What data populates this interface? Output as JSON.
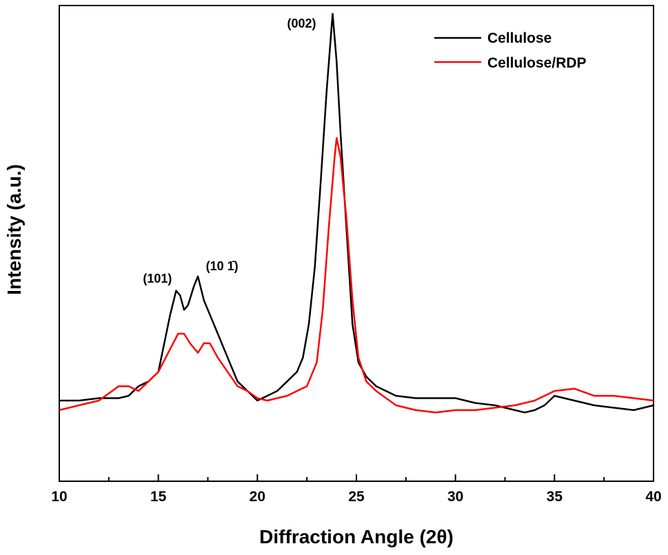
{
  "chart_data": {
    "type": "line",
    "title": "",
    "xlabel": "Diffraction Angle (2θ)",
    "ylabel": "Intensity (a.u.)",
    "xlim": [
      10,
      40
    ],
    "ylim": [
      0,
      100
    ],
    "xticks": [
      10,
      15,
      20,
      25,
      30,
      35,
      40
    ],
    "grid": false,
    "legend_position": "top-right",
    "annotations": [
      {
        "text": "(002)",
        "x": 23.8
      },
      {
        "text": "(101)",
        "x": 16.0
      },
      {
        "text": "(10 1̄)",
        "x": 17.0
      }
    ],
    "series": [
      {
        "name": "Cellulose",
        "color": "#000000",
        "x": [
          10,
          11,
          12,
          13,
          13.5,
          14,
          14.5,
          15,
          15.3,
          15.6,
          15.9,
          16.1,
          16.3,
          16.5,
          16.8,
          17.0,
          17.3,
          17.6,
          18.0,
          18.5,
          19.0,
          19.5,
          20.0,
          20.5,
          21.0,
          21.5,
          22.0,
          22.3,
          22.6,
          22.9,
          23.2,
          23.5,
          23.8,
          24.0,
          24.2,
          24.5,
          24.8,
          25.1,
          25.5,
          26.0,
          27.0,
          28.0,
          29.0,
          30.0,
          31.0,
          32.0,
          33.0,
          33.5,
          34.0,
          34.5,
          35.0,
          36.0,
          37.0,
          38.0,
          39.0,
          40.0
        ],
        "y": [
          19,
          19,
          19.5,
          19.5,
          20,
          22,
          23,
          25,
          31,
          37,
          42,
          41,
          38,
          39,
          43,
          45,
          40,
          37,
          33,
          28,
          23,
          21,
          19,
          20,
          21,
          23,
          25,
          28,
          35,
          47,
          65,
          84,
          100,
          90,
          75,
          55,
          35,
          27,
          24,
          22,
          20,
          19.5,
          19.5,
          19.5,
          18.5,
          18,
          17,
          16.5,
          17,
          18,
          20,
          19,
          18,
          17.5,
          17,
          18
        ]
      },
      {
        "name": "Cellulose/RDP",
        "color": "#ff0000",
        "x": [
          10,
          11,
          12,
          12.5,
          13,
          13.5,
          14,
          14.5,
          15,
          15.5,
          16.0,
          16.3,
          16.6,
          17.0,
          17.3,
          17.6,
          18.0,
          18.5,
          19.0,
          19.5,
          20.0,
          20.5,
          21.0,
          21.5,
          22.0,
          22.5,
          23.0,
          23.3,
          23.6,
          23.9,
          24.0,
          24.2,
          24.5,
          24.8,
          25.1,
          25.5,
          26.0,
          27.0,
          28.0,
          29.0,
          30.0,
          31.0,
          32.0,
          33.0,
          34.0,
          35.0,
          36.0,
          37.0,
          38.0,
          39.0,
          40.0
        ],
        "y": [
          17,
          18,
          19,
          20.5,
          22,
          22,
          21,
          23,
          25,
          29,
          33,
          33,
          31,
          29,
          31,
          31,
          28,
          25,
          22,
          21,
          19.5,
          19,
          19.5,
          20,
          21,
          22,
          27,
          38,
          55,
          70,
          74,
          70,
          57,
          40,
          28,
          23,
          21,
          18,
          17,
          16.5,
          17,
          17,
          17.5,
          18,
          19,
          21,
          21.5,
          20,
          20,
          19.5,
          19
        ]
      }
    ]
  }
}
